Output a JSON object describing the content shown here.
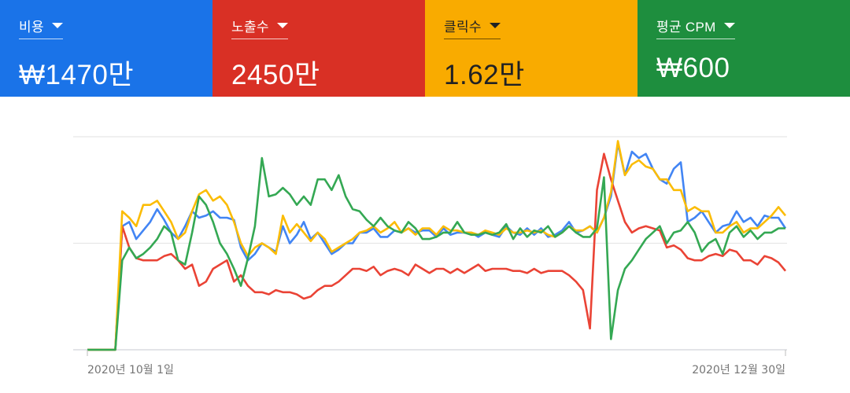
{
  "metrics": [
    {
      "label": "비용",
      "value": "₩1470만",
      "color": "#1a73e8",
      "text_color": "#ffffff"
    },
    {
      "label": "노출수",
      "value": "2450만",
      "color": "#d93025",
      "text_color": "#ffffff"
    },
    {
      "label": "클릭수",
      "value": "1.62만",
      "color": "#f9ab00",
      "text_color": "#202124"
    },
    {
      "label": "평균 CPM",
      "value": "₩600",
      "color": "#1e8e3e",
      "text_color": "#ffffff"
    }
  ],
  "chart_data": {
    "type": "line",
    "x_start_label": "2020년 10월 1일",
    "x_end_label": "2020년 12월 30일",
    "ylim": [
      0,
      100
    ],
    "grid": true,
    "series": [
      {
        "color": "#4285f4",
        "values": [
          0,
          0,
          0,
          0,
          0,
          58,
          60,
          52,
          56,
          60,
          66,
          61,
          55,
          52,
          58,
          65,
          62,
          63,
          65,
          62,
          62,
          61,
          48,
          42,
          45,
          50,
          48,
          46,
          58,
          50,
          54,
          60,
          52,
          55,
          50,
          45,
          47,
          50,
          50,
          55,
          55,
          57,
          53,
          53,
          56,
          55,
          57,
          55,
          56,
          56,
          53,
          57,
          54,
          55,
          55,
          55,
          53,
          55,
          54,
          53,
          58,
          55,
          54,
          57,
          54,
          57,
          53,
          54,
          56,
          60,
          55,
          56,
          58,
          55,
          62,
          72,
          97,
          82,
          93,
          90,
          92,
          85,
          80,
          78,
          85,
          88,
          60,
          62,
          65,
          60,
          55,
          58,
          59,
          65,
          60,
          62,
          58,
          63,
          62,
          62,
          57
        ]
      },
      {
        "color": "#ea4335",
        "values": [
          0,
          0,
          0,
          0,
          0,
          58,
          48,
          43,
          42,
          42,
          42,
          44,
          45,
          42,
          38,
          40,
          30,
          32,
          38,
          40,
          42,
          32,
          35,
          30,
          27,
          27,
          26,
          28,
          27,
          27,
          26,
          24,
          25,
          28,
          30,
          30,
          32,
          35,
          38,
          38,
          37,
          39,
          35,
          37,
          38,
          37,
          35,
          40,
          38,
          36,
          38,
          38,
          36,
          38,
          36,
          38,
          40,
          37,
          38,
          38,
          38,
          37,
          37,
          36,
          38,
          36,
          37,
          37,
          37,
          35,
          32,
          28,
          10,
          75,
          92,
          80,
          70,
          60,
          55,
          57,
          58,
          57,
          56,
          48,
          49,
          47,
          43,
          42,
          42,
          44,
          45,
          44,
          47,
          46,
          42,
          42,
          40,
          44,
          43,
          41,
          37
        ]
      },
      {
        "color": "#fbbc05",
        "values": [
          0,
          0,
          0,
          0,
          0,
          65,
          62,
          58,
          68,
          68,
          70,
          65,
          60,
          52,
          55,
          65,
          73,
          75,
          70,
          72,
          68,
          60,
          50,
          44,
          48,
          50,
          48,
          45,
          63,
          55,
          59,
          55,
          51,
          55,
          52,
          46,
          48,
          50,
          52,
          55,
          56,
          58,
          55,
          57,
          60,
          55,
          57,
          54,
          57,
          57,
          54,
          58,
          56,
          56,
          55,
          55,
          54,
          56,
          55,
          54,
          57,
          55,
          55,
          56,
          55,
          56,
          54,
          53,
          55,
          58,
          56,
          56,
          58,
          55,
          62,
          74,
          98,
          82,
          87,
          89,
          86,
          85,
          80,
          80,
          75,
          75,
          65,
          67,
          65,
          65,
          55,
          55,
          58,
          60,
          55,
          57,
          57,
          60,
          63,
          67,
          63
        ]
      },
      {
        "color": "#34a853",
        "values": [
          0,
          0,
          0,
          0,
          0,
          42,
          48,
          43,
          45,
          48,
          52,
          58,
          55,
          42,
          40,
          55,
          72,
          68,
          60,
          50,
          45,
          38,
          30,
          43,
          58,
          90,
          72,
          73,
          76,
          73,
          68,
          72,
          68,
          80,
          80,
          75,
          82,
          72,
          66,
          65,
          61,
          58,
          62,
          58,
          56,
          55,
          60,
          57,
          52,
          52,
          53,
          55,
          55,
          60,
          55,
          54,
          54,
          55,
          54,
          55,
          59,
          52,
          57,
          53,
          56,
          55,
          58,
          53,
          55,
          58,
          55,
          53,
          53,
          57,
          81,
          5,
          28,
          38,
          42,
          47,
          52,
          55,
          58,
          50,
          55,
          56,
          60,
          55,
          46,
          50,
          52,
          45,
          55,
          58,
          53,
          56,
          52,
          55,
          55,
          57,
          57
        ]
      }
    ]
  }
}
